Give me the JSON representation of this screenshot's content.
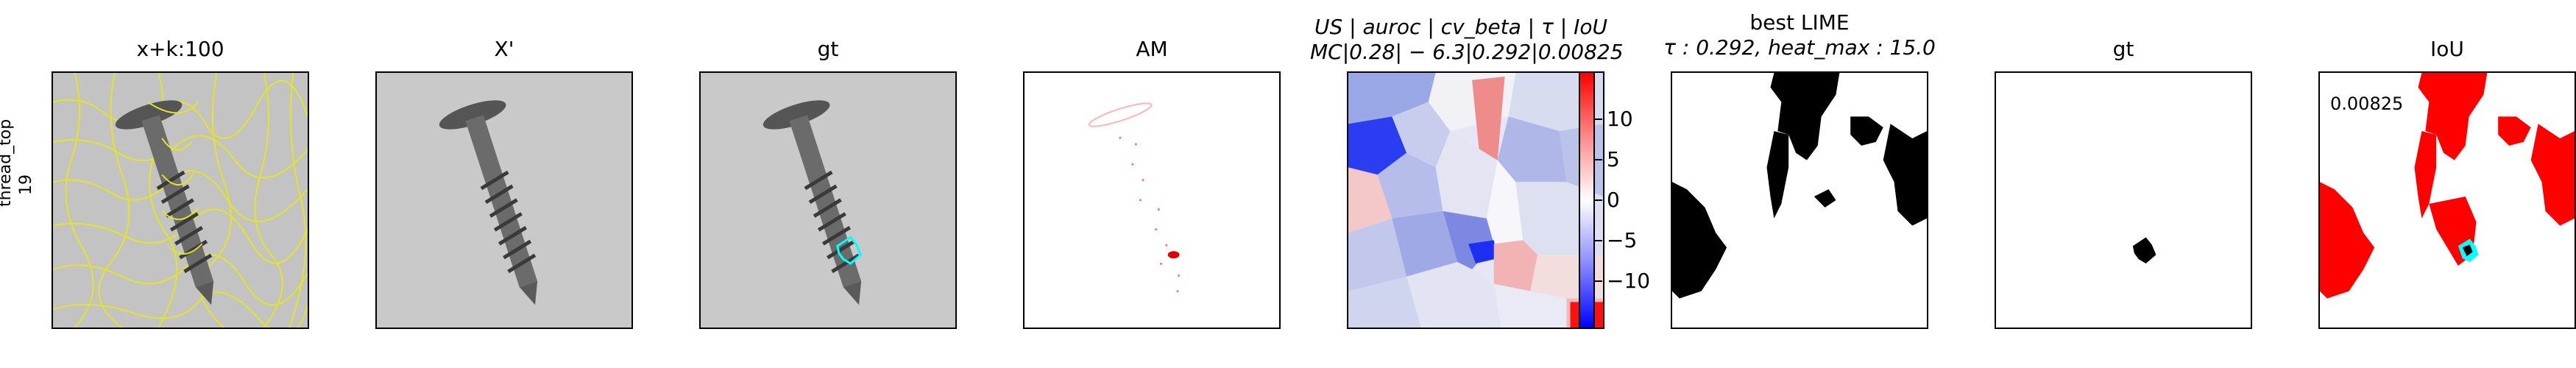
{
  "row_label": "thread_top\n19",
  "panels": [
    {
      "title": "x+k:100"
    },
    {
      "title": "X'"
    },
    {
      "title": "gt"
    },
    {
      "title": "AM"
    },
    {
      "title_line1": "US | auroc | cv_beta | τ | IoU",
      "title_line2": "MC|0.28| − 6.3|0.292|0.00825"
    },
    {
      "title_line1": "best LIME",
      "title_line2": "τ : 0.292, heat_max : 15.0"
    },
    {
      "title": "gt"
    },
    {
      "title": "IoU",
      "value": "0.00825"
    }
  ],
  "colorbar": {
    "ticks": [
      "10",
      "5",
      "0",
      "−5",
      "−10"
    ],
    "colors": {
      "positive": "#ff0000",
      "zero": "#ffffff",
      "negative": "#0000ff"
    }
  }
}
